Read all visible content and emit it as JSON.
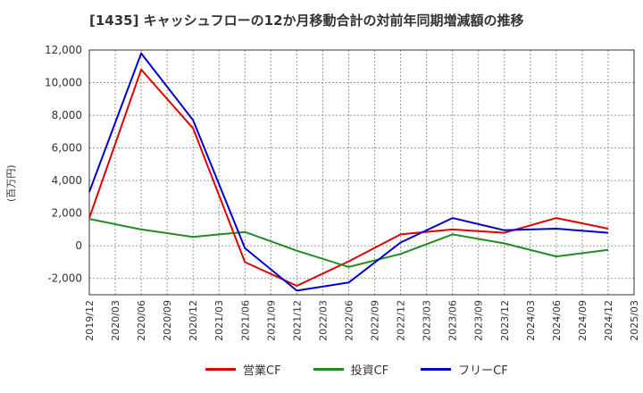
{
  "chart_data": {
    "type": "line",
    "title": "[1435]  キャッシュフローの12か月移動合計の対前年同期増減額の推移",
    "ylabel": "(百万円)",
    "xlabel": "",
    "ylim": [
      -3000,
      12000
    ],
    "yticks": [
      -2000,
      0,
      2000,
      4000,
      6000,
      8000,
      10000,
      12000
    ],
    "ytick_labels": [
      "-2,000",
      "0",
      "2,000",
      "4,000",
      "6,000",
      "8,000",
      "10,000",
      "12,000"
    ],
    "xticks": [
      "2019/12",
      "2020/03",
      "2020/06",
      "2020/09",
      "2020/12",
      "2021/03",
      "2021/06",
      "2021/09",
      "2021/12",
      "2022/03",
      "2022/06",
      "2022/09",
      "2022/12",
      "2023/03",
      "2023/06",
      "2023/09",
      "2023/12",
      "2024/03",
      "2024/06",
      "2024/09",
      "2024/12",
      "2025/03"
    ],
    "legend_position": "bottom",
    "series": [
      {
        "name": "営業CF",
        "color": "#e00000",
        "x": [
          "2019/12",
          "2020/06",
          "2020/12",
          "2021/06",
          "2021/12",
          "2022/06",
          "2022/12",
          "2023/06",
          "2023/12",
          "2024/06",
          "2024/12"
        ],
        "values": [
          1700,
          10800,
          7200,
          -1000,
          -2450,
          -950,
          700,
          1000,
          800,
          1700,
          1050
        ]
      },
      {
        "name": "投資CF",
        "color": "#228b22",
        "x": [
          "2019/12",
          "2020/06",
          "2020/12",
          "2021/06",
          "2021/12",
          "2022/06",
          "2022/12",
          "2023/06",
          "2023/12",
          "2024/06",
          "2024/12"
        ],
        "values": [
          1650,
          1000,
          550,
          850,
          -300,
          -1300,
          -500,
          700,
          150,
          -650,
          -250
        ]
      },
      {
        "name": "フリーCF",
        "color": "#0000cc",
        "x": [
          "2019/12",
          "2020/06",
          "2020/12",
          "2021/06",
          "2021/12",
          "2022/06",
          "2022/12",
          "2023/06",
          "2023/12",
          "2024/06",
          "2024/12"
        ],
        "values": [
          3300,
          11800,
          7700,
          -150,
          -2750,
          -2250,
          200,
          1700,
          950,
          1050,
          800
        ]
      }
    ]
  }
}
